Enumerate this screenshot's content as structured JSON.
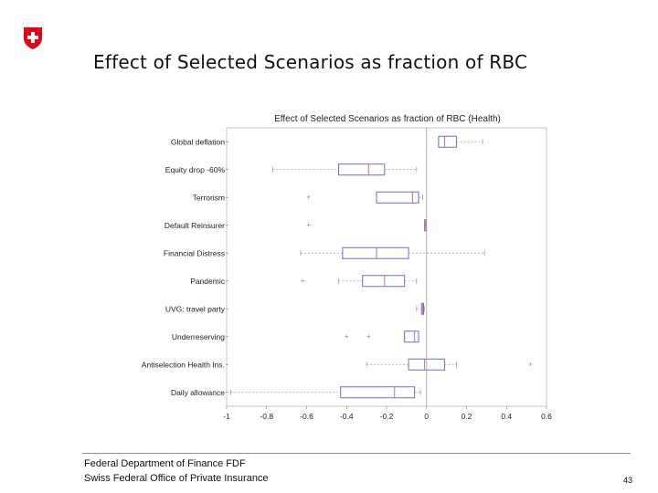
{
  "slide": {
    "title": "Effect of Selected Scenarios as fraction of RBC",
    "footer_line1": "Federal Department of Finance FDF",
    "footer_line2": "Swiss Federal Office of Private Insurance",
    "page_number": "43",
    "logo_icon": "swiss-cross-icon",
    "logo_color": "#e30613"
  },
  "chart_data": {
    "type": "boxplot",
    "title": "Effect of Selected Scenarios as fraction of RBC (Health)",
    "xlabel": "",
    "ylabel": "",
    "xlim": [
      -1,
      0.6
    ],
    "xticks": [
      "-1",
      "-0.8",
      "-0.6",
      "-0.4",
      "-0.2",
      "0",
      "0.2",
      "0.4",
      "0.6"
    ],
    "xtick_values": [
      -1,
      -0.8,
      -0.6,
      -0.4,
      -0.2,
      0,
      0.2,
      0.4,
      0.6
    ],
    "grid": false,
    "reference_line": 0,
    "box_color": "#6b6fc8",
    "median_color": "#d26d6d",
    "series": [
      {
        "name": "Global deflation",
        "whisker_low": 0.06,
        "q1": 0.06,
        "median": 0.09,
        "q3": 0.15,
        "whisker_high": 0.28,
        "outliers": []
      },
      {
        "name": "Equity drop -60%",
        "whisker_low": -0.77,
        "q1": -0.44,
        "median": -0.29,
        "q3": -0.21,
        "whisker_high": -0.05,
        "outliers": []
      },
      {
        "name": "Terrorism",
        "whisker_low": -0.25,
        "q1": -0.25,
        "median": -0.07,
        "q3": -0.04,
        "whisker_high": -0.02,
        "outliers": [
          -0.59
        ]
      },
      {
        "name": "Default Reinsurer",
        "whisker_low": -0.01,
        "q1": -0.01,
        "median": -0.01,
        "q3": -0.005,
        "whisker_high": -0.005,
        "outliers": [
          -0.59
        ]
      },
      {
        "name": "Financial Distress",
        "whisker_low": -0.63,
        "q1": -0.42,
        "median": -0.25,
        "q3": -0.09,
        "whisker_high": 0.29,
        "outliers": []
      },
      {
        "name": "Pandemic",
        "whisker_low": -0.44,
        "q1": -0.32,
        "median": -0.21,
        "q3": -0.11,
        "whisker_high": -0.05,
        "outliers": [
          -0.62
        ]
      },
      {
        "name": "UVG: travel party",
        "whisker_low": -0.05,
        "q1": -0.025,
        "median": -0.02,
        "q3": -0.015,
        "whisker_high": -0.01,
        "outliers": []
      },
      {
        "name": "Underreserving",
        "whisker_low": -0.11,
        "q1": -0.11,
        "median": -0.06,
        "q3": -0.04,
        "whisker_high": -0.04,
        "outliers": [
          -0.4,
          -0.29
        ]
      },
      {
        "name": "Antiselection Health Ins.",
        "whisker_low": -0.3,
        "q1": -0.09,
        "median": -0.01,
        "q3": 0.09,
        "whisker_high": 0.15,
        "outliers": [
          0.52
        ]
      },
      {
        "name": "Daily allowance",
        "whisker_low": -0.98,
        "q1": -0.43,
        "median": -0.16,
        "q3": -0.06,
        "whisker_high": -0.03,
        "outliers": []
      }
    ]
  }
}
